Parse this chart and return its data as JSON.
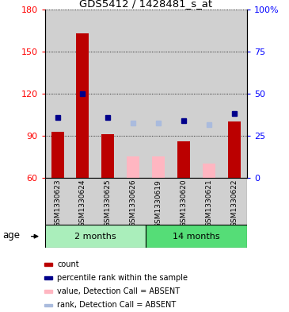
{
  "title": "GDS5412 / 1428481_s_at",
  "samples": [
    "GSM1330623",
    "GSM1330624",
    "GSM1330625",
    "GSM1330626",
    "GSM1330619",
    "GSM1330620",
    "GSM1330621",
    "GSM1330622"
  ],
  "count_values": [
    93,
    163,
    91,
    null,
    null,
    86,
    null,
    100
  ],
  "count_color": "#BB0000",
  "absent_value_values": [
    null,
    null,
    null,
    75,
    75,
    null,
    70,
    null
  ],
  "absent_value_color": "#FFB6C1",
  "blue_sq_values": [
    103,
    120,
    103,
    99,
    99,
    101,
    98,
    106
  ],
  "blue_sq_absent": [
    false,
    false,
    false,
    true,
    true,
    false,
    true,
    false
  ],
  "blue_present_color": "#00008B",
  "blue_absent_color": "#AABBDD",
  "ylim_left": [
    60,
    180
  ],
  "ylim_right": [
    0,
    100
  ],
  "yticks_left": [
    60,
    90,
    120,
    150,
    180
  ],
  "yticks_right": [
    0,
    25,
    50,
    75,
    100
  ],
  "ytick_labels_right": [
    "0",
    "25",
    "50",
    "75",
    "100%"
  ],
  "group1_label": "2 months",
  "group1_color": "#AAEEBB",
  "group2_label": "14 months",
  "group2_color": "#55DD77",
  "legend_items": [
    {
      "color": "#BB0000",
      "label": "count"
    },
    {
      "color": "#00008B",
      "label": "percentile rank within the sample"
    },
    {
      "color": "#FFB6C1",
      "label": "value, Detection Call = ABSENT"
    },
    {
      "color": "#AABBDD",
      "label": "rank, Detection Call = ABSENT"
    }
  ],
  "col_bg_color": "#D0D0D0",
  "bar_width": 0.5
}
